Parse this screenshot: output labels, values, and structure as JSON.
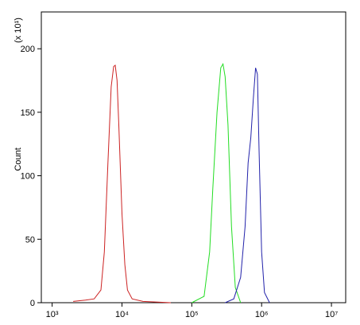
{
  "chart_data": {
    "type": "line",
    "ylabel": "Count",
    "y_multiplier": "(x 10¹)",
    "xscale": "log",
    "xlim": [
      700,
      16000000
    ],
    "xticks": [
      {
        "value": 1000,
        "label": "10³"
      },
      {
        "value": 10000,
        "label": "10⁴"
      },
      {
        "value": 100000,
        "label": "10⁵"
      },
      {
        "value": 1000000,
        "label": "10⁶"
      },
      {
        "value": 10000000,
        "label": "10⁷"
      }
    ],
    "ylim": [
      0,
      229
    ],
    "yticks": [
      0,
      50,
      100,
      150,
      200
    ],
    "series": [
      {
        "color": "#cc2222",
        "x": [
          2000,
          3000,
          4000,
          5000,
          5600,
          6300,
          7000,
          7600,
          8000,
          8500,
          9000,
          10000,
          11000,
          12000,
          14000,
          20000,
          50000
        ],
        "values": [
          1,
          2,
          3,
          10,
          40,
          110,
          170,
          186,
          187,
          175,
          140,
          70,
          30,
          10,
          3,
          1,
          0
        ]
      },
      {
        "color": "#22dd22",
        "x": [
          100000,
          150000,
          180000,
          200000,
          230000,
          260000,
          280000,
          300000,
          330000,
          370000,
          420000,
          500000
        ],
        "values": [
          0,
          5,
          40,
          90,
          150,
          185,
          188,
          178,
          140,
          60,
          12,
          0
        ]
      },
      {
        "color": "#2222aa",
        "x": [
          300000,
          400000,
          500000,
          580000,
          640000,
          700000,
          760000,
          820000,
          870000,
          920000,
          1000000,
          1100000,
          1300000
        ],
        "values": [
          0,
          3,
          20,
          60,
          110,
          130,
          160,
          185,
          180,
          120,
          40,
          8,
          0
        ]
      }
    ]
  }
}
